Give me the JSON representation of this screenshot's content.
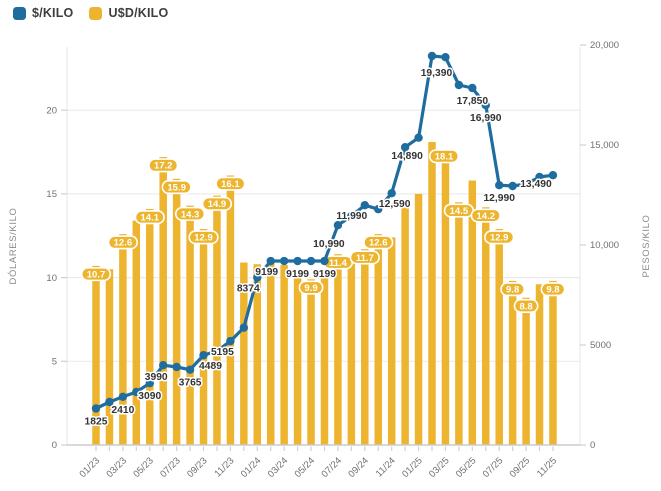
{
  "chart_data": {
    "type": "combo",
    "categories": [
      "01/23",
      "02/23",
      "03/23",
      "04/23",
      "05/23",
      "06/23",
      "07/23",
      "08/23",
      "09/23",
      "10/23",
      "11/23",
      "12/23",
      "01/24",
      "02/24",
      "03/24",
      "04/24",
      "05/24",
      "06/24",
      "07/24",
      "08/24",
      "09/24",
      "10/24",
      "11/24",
      "12/24",
      "01/25",
      "02/25",
      "03/25",
      "04/25",
      "05/25",
      "06/25",
      "07/25",
      "08/25",
      "09/25",
      "10/25",
      "11/25"
    ],
    "x_tick_labels_shown": [
      "01/23",
      "03/23",
      "05/23",
      "07/23",
      "09/23",
      "11/23",
      "01/24",
      "03/24",
      "05/24",
      "07/24",
      "09/24",
      "11/24",
      "01/25",
      "03/25",
      "05/25",
      "07/25",
      "09/25",
      "11/25"
    ],
    "series": [
      {
        "name": "$/KILO",
        "type": "line",
        "axis": "right",
        "color": "#1f6d9e",
        "values": [
          1825,
          2150,
          2410,
          2650,
          3090,
          3990,
          3900,
          3765,
          4489,
          4700,
          5195,
          5865,
          8374,
          9199,
          9199,
          9199,
          9199,
          9199,
          10990,
          11450,
          11990,
          11790,
          12590,
          14890,
          15365,
          19450,
          19390,
          18000,
          17850,
          16990,
          12990,
          12950,
          13050,
          13400,
          13490
        ],
        "labels": [
          {
            "i": 0,
            "text": "1825"
          },
          {
            "i": 2,
            "text": "2410"
          },
          {
            "i": 4,
            "text": "3090"
          },
          {
            "i": 5,
            "text": "3990"
          },
          {
            "i": 7,
            "text": "3765"
          },
          {
            "i": 8,
            "text": "4489"
          },
          {
            "i": 10,
            "text": "5195"
          },
          {
            "i": 12,
            "text": "8374"
          },
          {
            "i": 13,
            "text": "9199"
          },
          {
            "i": 15,
            "text": "9199"
          },
          {
            "i": 17,
            "text": "9199"
          },
          {
            "i": 18,
            "text": "10,990"
          },
          {
            "i": 20,
            "text": "11,990"
          },
          {
            "i": 22,
            "text": "12,590"
          },
          {
            "i": 23,
            "text": "14,890"
          },
          {
            "i": 26,
            "text": "19,390"
          },
          {
            "i": 28,
            "text": "17,850"
          },
          {
            "i": 29,
            "text": "16,990"
          },
          {
            "i": 30,
            "text": "12,990"
          },
          {
            "i": 34,
            "text": "13,490"
          }
        ]
      },
      {
        "name": "U$D/KILO",
        "type": "bar",
        "axis": "left",
        "color": "#edb52f",
        "values": [
          10.7,
          10.5,
          12.6,
          13.4,
          14.1,
          17.2,
          15.9,
          14.3,
          12.9,
          14.9,
          16.1,
          10.9,
          10.8,
          11.0,
          10.75,
          10.45,
          9.9,
          10.3,
          11.4,
          11.1,
          11.7,
          12.6,
          12.4,
          14.2,
          15.0,
          18.1,
          17.3,
          14.5,
          15.8,
          14.2,
          12.9,
          9.8,
          8.8,
          9.6,
          9.8
        ],
        "labels": [
          {
            "i": 0,
            "text": "10.7"
          },
          {
            "i": 2,
            "text": "12.6"
          },
          {
            "i": 4,
            "text": "14.1"
          },
          {
            "i": 5,
            "text": "17.2"
          },
          {
            "i": 6,
            "text": "15.9"
          },
          {
            "i": 7,
            "text": "14.3"
          },
          {
            "i": 8,
            "text": "12.9"
          },
          {
            "i": 9,
            "text": "14.9"
          },
          {
            "i": 10,
            "text": "16.1"
          },
          {
            "i": 16,
            "text": "9.9"
          },
          {
            "i": 18,
            "text": "11.4"
          },
          {
            "i": 20,
            "text": "11.7"
          },
          {
            "i": 21,
            "text": "12.6"
          },
          {
            "i": 25,
            "text": "18.1"
          },
          {
            "i": 27,
            "text": "14.5"
          },
          {
            "i": 29,
            "text": "14.2"
          },
          {
            "i": 30,
            "text": "12.9"
          },
          {
            "i": 31,
            "text": "9.8"
          },
          {
            "i": 32,
            "text": "8.8"
          },
          {
            "i": 34,
            "text": "9.8"
          }
        ]
      }
    ],
    "axes": {
      "left": {
        "title": "DÓLARES/KILO",
        "tick_labels": [
          "0",
          "5",
          "10",
          "15",
          "20"
        ],
        "tick_values": [
          0,
          5,
          10,
          15,
          20
        ],
        "range": [
          0,
          23.8
        ]
      },
      "right": {
        "title": "PESOS/KILO",
        "tick_labels": [
          "0",
          "5000",
          "10,000",
          "15,000",
          "20,000"
        ],
        "tick_values": [
          0,
          5000,
          10000,
          15000,
          20000
        ],
        "range": [
          0,
          19900
        ]
      }
    },
    "grid": "horizontal",
    "legend_position": "top-left",
    "colors": {
      "grid": "#ececec",
      "axis_line": "#cccccc",
      "tick_text": "#707070",
      "point_label_text": "#333333",
      "bar_label_text": "#ffffff",
      "background": "#ffffff"
    }
  }
}
